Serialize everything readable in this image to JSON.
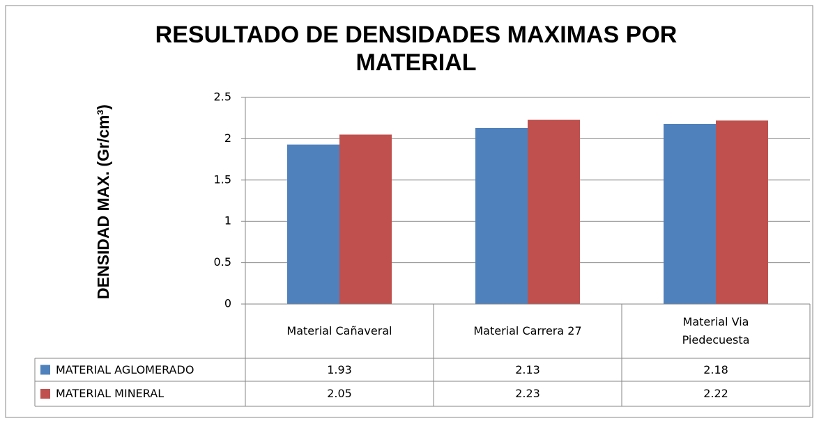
{
  "chart_data": {
    "type": "bar",
    "title": "RESULTADO DE DENSIDADES MAXIMAS POR MATERIAL",
    "y_label": "DENSIDAD MAX. (Gr/cm³)",
    "categories": [
      "Material Cañaveral",
      "Material Carrera 27",
      "Material Via Piedecuesta"
    ],
    "series": [
      {
        "name": "MATERIAL AGLOMERADO",
        "color": "#4f81bd",
        "values": [
          1.93,
          2.13,
          2.18
        ]
      },
      {
        "name": "MATERIAL MINERAL",
        "color": "#c0504d",
        "values": [
          2.05,
          2.23,
          2.22
        ]
      }
    ],
    "ylim": [
      0,
      2.5
    ],
    "yticks": [
      0,
      0.5,
      1,
      1.5,
      2,
      2.5
    ],
    "grid": true,
    "data_table": true
  }
}
